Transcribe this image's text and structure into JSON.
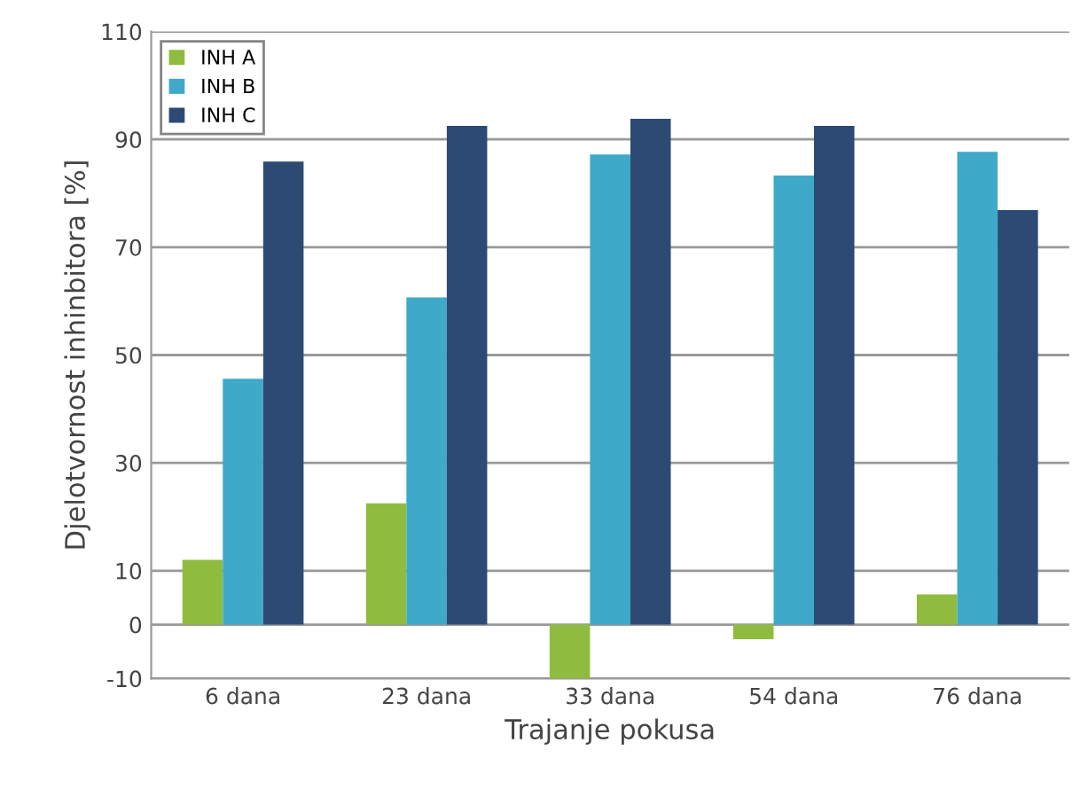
{
  "chart_data": {
    "type": "bar",
    "xlabel": "Trajanje pokusa",
    "ylabel": "Djelotvornost inhinbitora [%]",
    "categories": [
      "6 dana",
      "23 dana",
      "33 dana",
      "54 dana",
      "76 dana"
    ],
    "series": [
      {
        "name": "INH A",
        "color": "#8fbc3f",
        "values": [
          12,
          22.5,
          -10,
          -2.7,
          5.6
        ]
      },
      {
        "name": "INH B",
        "color": "#3fa9c9",
        "values": [
          45.6,
          60.7,
          87.2,
          83.3,
          87.7
        ]
      },
      {
        "name": "INH C",
        "color": "#2c4a74",
        "values": [
          85.9,
          92.5,
          93.8,
          92.5,
          76.9
        ]
      }
    ],
    "ylim": [
      -10,
      110
    ],
    "yticks": [
      -10,
      0,
      10,
      30,
      50,
      70,
      90,
      110
    ],
    "grid": "y",
    "legend": "top left"
  }
}
